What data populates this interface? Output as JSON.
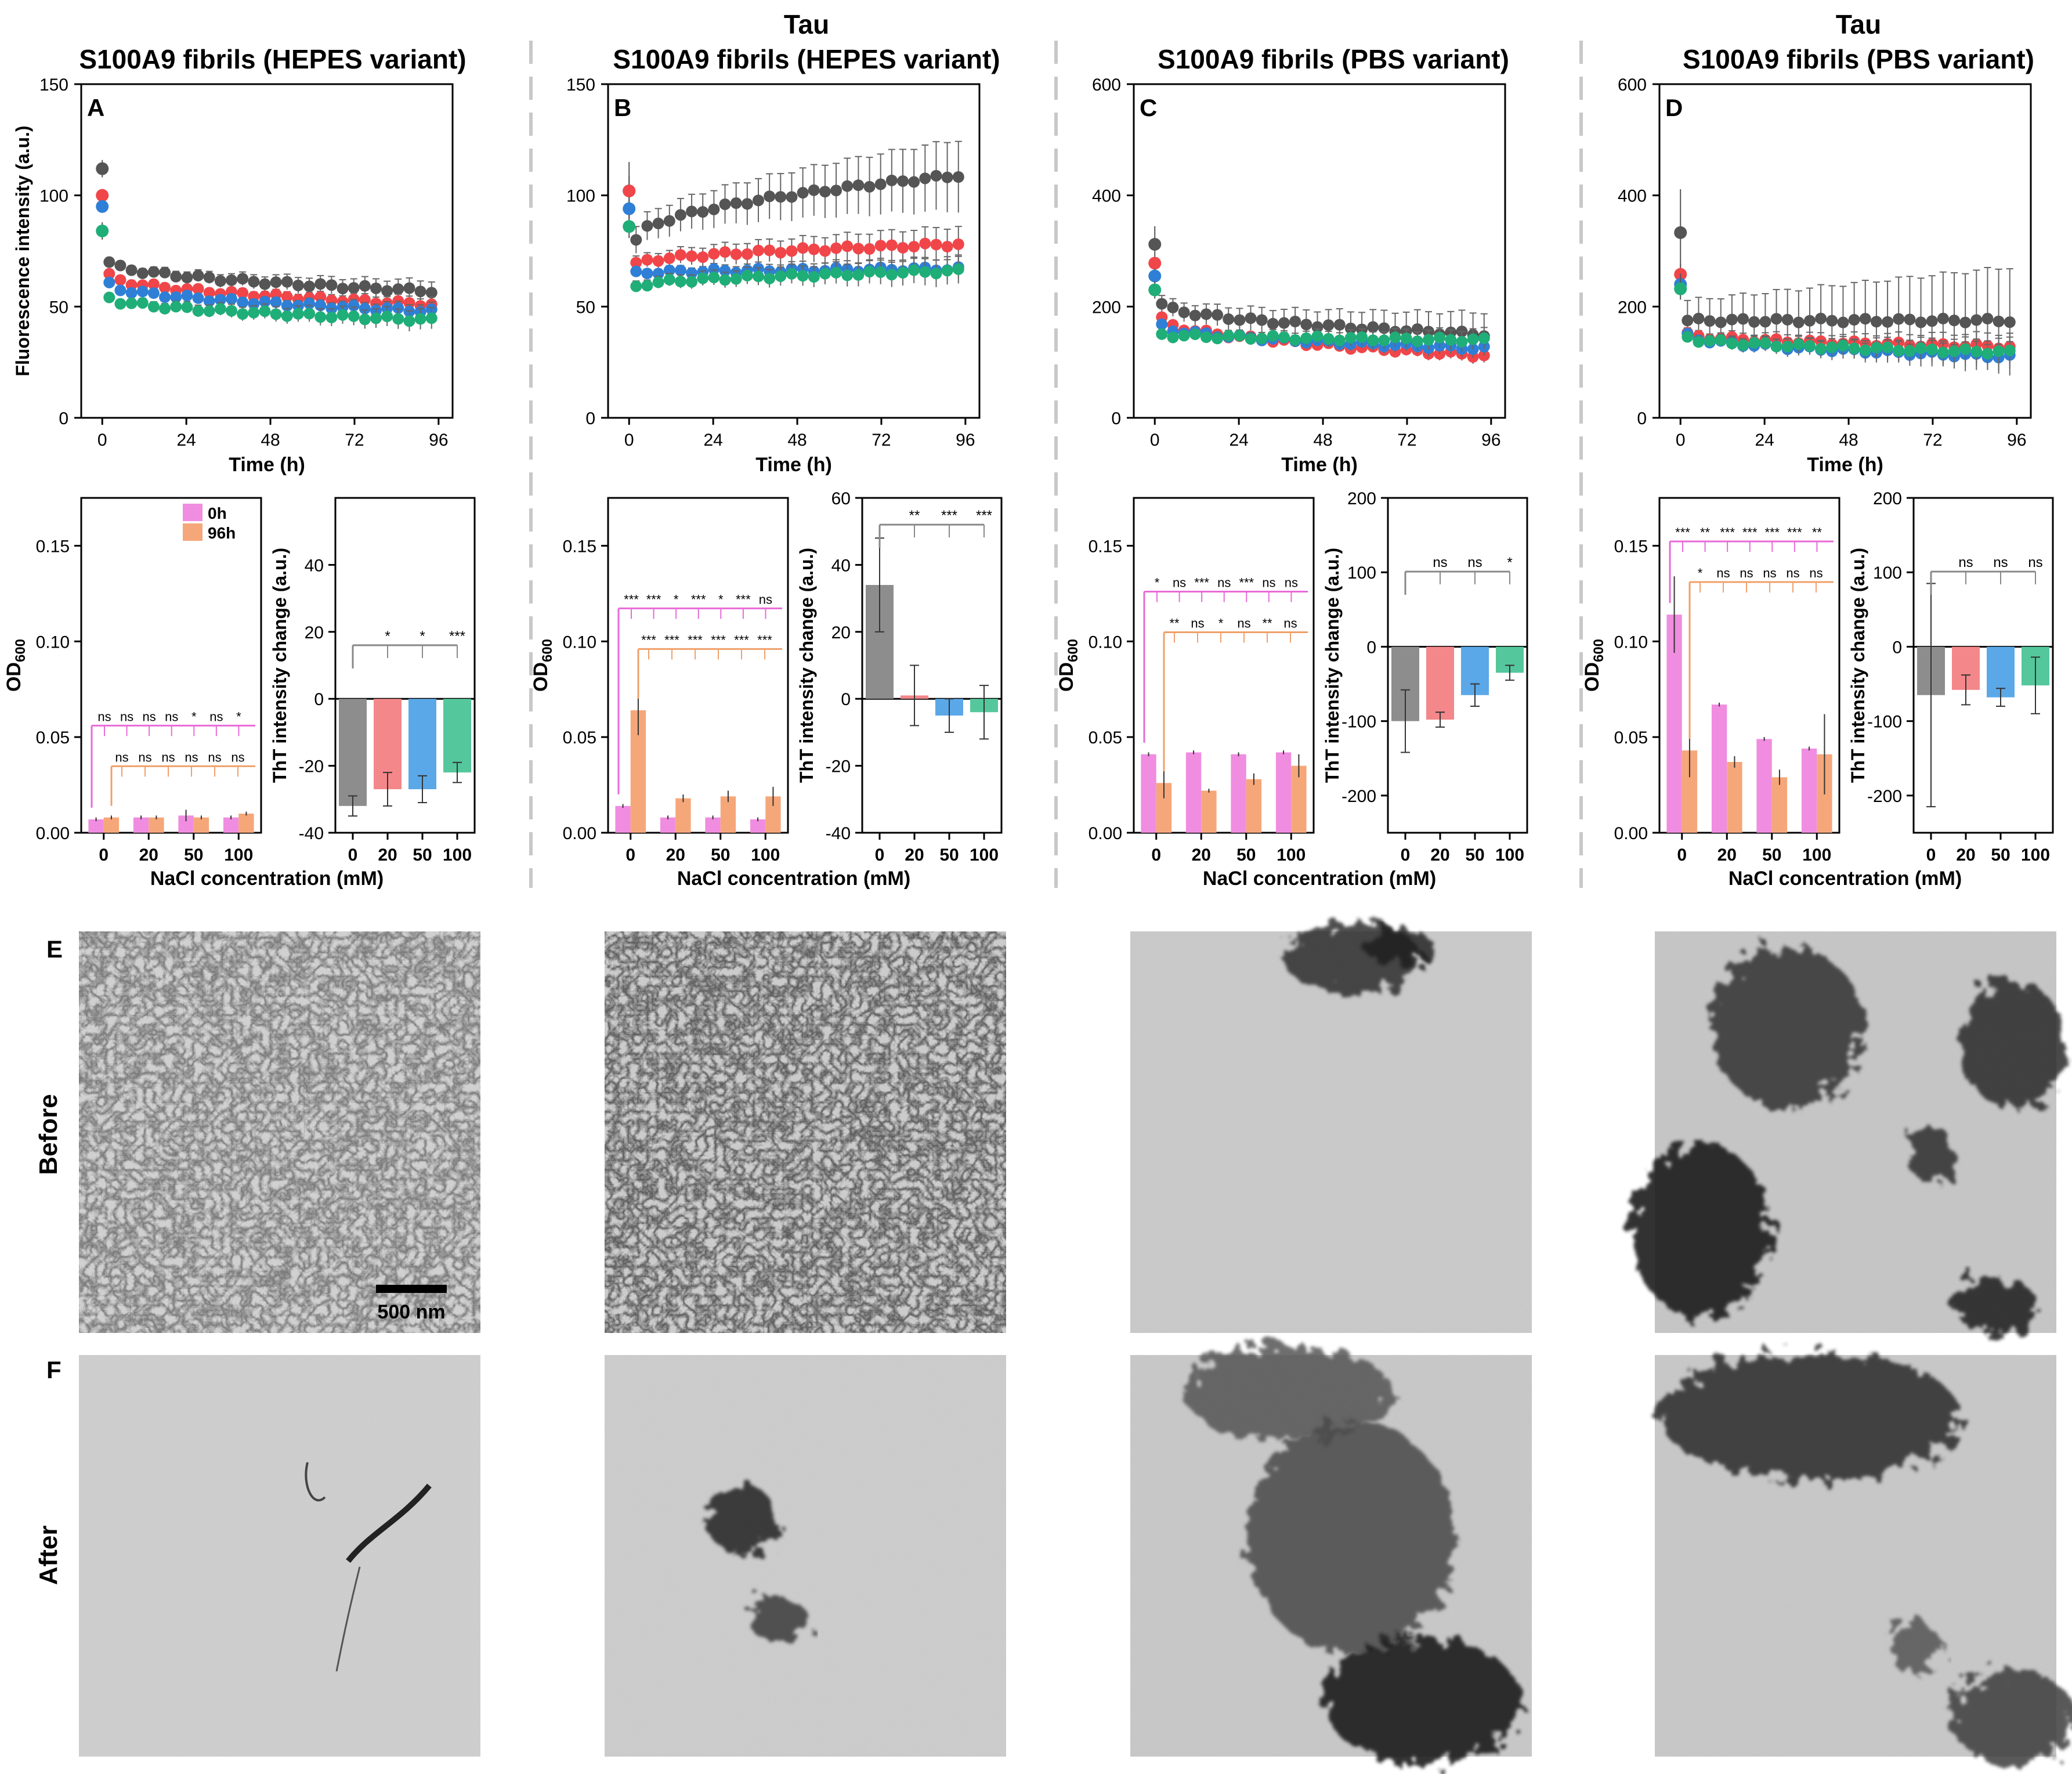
{
  "titles": [
    {
      "line1": "",
      "line2": "S100A9 fibrils (HEPES variant)"
    },
    {
      "line1": "Tau",
      "line2": "S100A9 fibrils (HEPES variant)"
    },
    {
      "line1": "",
      "line2": "S100A9 fibrils (PBS variant)"
    },
    {
      "line1": "Tau",
      "line2": "S100A9 fibrils (PBS variant)"
    }
  ],
  "panel_letters": [
    "A",
    "B",
    "C",
    "D",
    "E",
    "F"
  ],
  "row_labels": {
    "before": "Before",
    "after": "After"
  },
  "scale_bar_label": "500 nm",
  "colors": {
    "c0": "#555555",
    "c20": "#f0464a",
    "c50": "#2f7fd6",
    "c100": "#1fae78",
    "od0": "#f08de0",
    "od96": "#f5a77a",
    "bar0": "#8d8d8d",
    "bar20": "#f3878a",
    "bar50": "#5aa8e8",
    "bar100": "#55c79c",
    "sigPink": "#e86ad8",
    "sigOrange": "#f0a06a"
  },
  "chart_data": [
    {
      "type": "scatter",
      "panel": "A",
      "title": "S100A9 fibrils (HEPES variant)",
      "xlabel": "Time (h)",
      "ylabel": "Fluorescence intensity (a.u.)",
      "xlim": [
        -6,
        100
      ],
      "ylim": [
        0,
        150
      ],
      "xticks": [
        0,
        24,
        48,
        72,
        96
      ],
      "yticks": [
        0,
        50,
        100,
        150
      ],
      "series": [
        {
          "name": "0 mM",
          "t0": 112,
          "start": 70,
          "end": 57,
          "err": 3
        },
        {
          "name": "20 mM",
          "t0": 100,
          "start": 64,
          "end": 51,
          "err": 2
        },
        {
          "name": "50 mM",
          "t0": 95,
          "start": 60,
          "end": 48,
          "err": 2
        },
        {
          "name": "100 mM",
          "t0": 84,
          "start": 54,
          "end": 44,
          "err": 3
        }
      ]
    },
    {
      "type": "scatter",
      "panel": "B",
      "title": "S100A9 fibrils (HEPES variant)",
      "xlabel": "Time (h)",
      "ylabel": "",
      "xlim": [
        -6,
        100
      ],
      "ylim": [
        0,
        150
      ],
      "xticks": [
        0,
        24,
        48,
        72,
        96
      ],
      "yticks": [
        0,
        50,
        100,
        150
      ],
      "series": [
        {
          "name": "0 mM",
          "t0": 102,
          "start": 80,
          "end": 109,
          "err": 10
        },
        {
          "name": "20 mM",
          "t0": 102,
          "start": 69,
          "end": 78,
          "err": 5
        },
        {
          "name": "50 mM",
          "t0": 94,
          "start": 65,
          "end": 67,
          "err": 3
        },
        {
          "name": "100 mM",
          "t0": 86,
          "start": 59,
          "end": 66,
          "err": 4
        }
      ]
    },
    {
      "type": "scatter",
      "panel": "C",
      "title": "S100A9 fibrils (PBS variant)",
      "xlabel": "Time (h)",
      "ylabel": "",
      "xlim": [
        -6,
        100
      ],
      "ylim": [
        0,
        600
      ],
      "xticks": [
        0,
        24,
        48,
        72,
        96
      ],
      "yticks": [
        0,
        200,
        400,
        600
      ],
      "series": [
        {
          "name": "0 mM",
          "t0": 312,
          "start": 205,
          "end": 150,
          "err": 25
        },
        {
          "name": "20 mM",
          "t0": 278,
          "start": 178,
          "end": 112,
          "err": 8
        },
        {
          "name": "50 mM",
          "t0": 255,
          "start": 165,
          "end": 125,
          "err": 10
        },
        {
          "name": "100 mM",
          "t0": 230,
          "start": 150,
          "end": 140,
          "err": 12
        }
      ]
    },
    {
      "type": "scatter",
      "panel": "D",
      "title": "S100A9 fibrils (PBS variant)",
      "xlabel": "Time (h)",
      "ylabel": "",
      "xlim": [
        -6,
        100
      ],
      "ylim": [
        0,
        600
      ],
      "xticks": [
        0,
        24,
        48,
        72,
        96
      ],
      "yticks": [
        0,
        200,
        400,
        600
      ],
      "series": [
        {
          "name": "0 mM",
          "t0": 333,
          "start": 175,
          "end": 175,
          "err": 60
        },
        {
          "name": "20 mM",
          "t0": 258,
          "start": 150,
          "end": 128,
          "err": 15
        },
        {
          "name": "50 mM",
          "t0": 240,
          "start": 148,
          "end": 110,
          "err": 15
        },
        {
          "name": "100 mM",
          "t0": 232,
          "start": 145,
          "end": 118,
          "err": 15
        }
      ]
    },
    {
      "type": "bar",
      "panel": "A-OD",
      "ylabel": "OD600",
      "xlabel": "NaCl concentration (mM)",
      "categories": [
        "0",
        "20",
        "50",
        "100"
      ],
      "ylim": [
        0,
        0.175
      ],
      "yticks": [
        0.0,
        0.05,
        0.1,
        0.15
      ],
      "legend": [
        "0h",
        "96h"
      ],
      "series": [
        {
          "name": "0h",
          "values": [
            0.007,
            0.008,
            0.009,
            0.008
          ],
          "err": [
            0.001,
            0.001,
            0.003,
            0.001
          ]
        },
        {
          "name": "96h",
          "values": [
            0.008,
            0.008,
            0.008,
            0.01
          ],
          "err": [
            0.001,
            0.001,
            0.001,
            0.001
          ]
        }
      ],
      "sig_pink": [
        "ns",
        "ns",
        "ns",
        "ns",
        "*",
        "ns",
        "*"
      ],
      "sig_orange": [
        "ns",
        "ns",
        "ns",
        "ns",
        "ns",
        "ns"
      ]
    },
    {
      "type": "bar",
      "panel": "A-ThT",
      "ylabel": "ThT intensity change (a.u.)",
      "categories": [
        "0",
        "20",
        "50",
        "100"
      ],
      "ylim": [
        -40,
        60
      ],
      "yticks": [
        -40,
        -20,
        0,
        20,
        40
      ],
      "values": [
        -32,
        -27,
        -27,
        -22
      ],
      "err": [
        3,
        5,
        4,
        3
      ],
      "sig": [
        "*",
        "*",
        "***"
      ]
    },
    {
      "type": "bar",
      "panel": "B-OD",
      "ylabel": "OD600",
      "categories": [
        "0",
        "20",
        "50",
        "100"
      ],
      "ylim": [
        0,
        0.175
      ],
      "yticks": [
        0.0,
        0.05,
        0.1,
        0.15
      ],
      "series": [
        {
          "name": "0h",
          "values": [
            0.014,
            0.008,
            0.008,
            0.007
          ],
          "err": [
            0.001,
            0.001,
            0.001,
            0.001
          ]
        },
        {
          "name": "96h",
          "values": [
            0.064,
            0.018,
            0.019,
            0.019
          ],
          "err": [
            0.013,
            0.002,
            0.003,
            0.005
          ]
        }
      ],
      "sig_pink": [
        "***",
        "***",
        "*",
        "***",
        "*",
        "***",
        "ns"
      ],
      "sig_orange": [
        "***",
        "***",
        "***",
        "***",
        "***",
        "***"
      ]
    },
    {
      "type": "bar",
      "panel": "B-ThT",
      "ylabel": "ThT intensity change (a.u.)",
      "categories": [
        "0",
        "20",
        "50",
        "100"
      ],
      "ylim": [
        -40,
        60
      ],
      "yticks": [
        -40,
        -20,
        0,
        20,
        40,
        60
      ],
      "values": [
        34,
        1,
        -5,
        -4
      ],
      "err": [
        14,
        9,
        5,
        8
      ],
      "sig": [
        "**",
        "***",
        "***"
      ]
    },
    {
      "type": "bar",
      "panel": "C-OD",
      "ylabel": "OD600",
      "categories": [
        "0",
        "20",
        "50",
        "100"
      ],
      "ylim": [
        0,
        0.175
      ],
      "yticks": [
        0.0,
        0.05,
        0.1,
        0.15
      ],
      "series": [
        {
          "name": "0h",
          "values": [
            0.041,
            0.042,
            0.041,
            0.042
          ],
          "err": [
            0.001,
            0.001,
            0.001,
            0.001
          ]
        },
        {
          "name": "96h",
          "values": [
            0.026,
            0.022,
            0.028,
            0.035
          ],
          "err": [
            0.008,
            0.001,
            0.003,
            0.006
          ]
        }
      ],
      "sig_pink": [
        "*",
        "ns",
        "***",
        "ns",
        "***",
        "ns",
        "ns"
      ],
      "sig_orange": [
        "**",
        "ns",
        "*",
        "ns",
        "**",
        "ns"
      ]
    },
    {
      "type": "bar",
      "panel": "C-ThT",
      "ylabel": "ThT intensity change (a.u.)",
      "categories": [
        "0",
        "20",
        "50",
        "100"
      ],
      "ylim": [
        -250,
        200
      ],
      "yticks": [
        -200,
        -100,
        0,
        100,
        200
      ],
      "values": [
        -100,
        -98,
        -65,
        -35
      ],
      "err": [
        42,
        10,
        15,
        10
      ],
      "sig": [
        "ns",
        "ns",
        "*"
      ]
    },
    {
      "type": "bar",
      "panel": "D-OD",
      "ylabel": "OD600",
      "categories": [
        "0",
        "20",
        "50",
        "100"
      ],
      "ylim": [
        0,
        0.175
      ],
      "yticks": [
        0.0,
        0.05,
        0.1,
        0.15
      ],
      "series": [
        {
          "name": "0h",
          "values": [
            0.114,
            0.067,
            0.049,
            0.044
          ],
          "err": [
            0.02,
            0.001,
            0.001,
            0.001
          ]
        },
        {
          "name": "96h",
          "values": [
            0.043,
            0.037,
            0.029,
            0.041
          ],
          "err": [
            0.014,
            0.003,
            0.004,
            0.021
          ]
        }
      ],
      "sig_pink": [
        "***",
        "**",
        "***",
        "***",
        "***",
        "***",
        "**"
      ],
      "sig_orange": [
        "*",
        "ns",
        "ns",
        "ns",
        "ns",
        "ns"
      ]
    },
    {
      "type": "bar",
      "panel": "D-ThT",
      "ylabel": "ThT intensity change (a.u.)",
      "categories": [
        "0",
        "20",
        "50",
        "100"
      ],
      "ylim": [
        -250,
        200
      ],
      "yticks": [
        -200,
        -100,
        0,
        100,
        200
      ],
      "values": [
        -65,
        -58,
        -68,
        -52
      ],
      "err": [
        150,
        20,
        12,
        38
      ],
      "sig": [
        "ns",
        "ns",
        "ns"
      ]
    }
  ]
}
